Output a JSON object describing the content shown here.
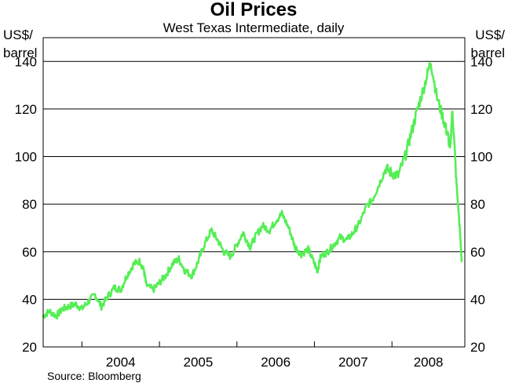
{
  "chart_data": {
    "type": "line",
    "title": "Oil Prices",
    "subtitle": "West Texas Intermediate, daily",
    "ylabel_left": [
      "US$/",
      "barrel"
    ],
    "ylabel_right": [
      "US$/",
      "barrel"
    ],
    "ylim": [
      20,
      150
    ],
    "yticks": [
      20,
      40,
      60,
      80,
      100,
      120,
      140
    ],
    "xlim": [
      2003.5,
      2008.94
    ],
    "year_labels": [
      "2004",
      "2005",
      "2006",
      "2007",
      "2008"
    ],
    "grid": true,
    "line_color": "#55ee55",
    "source": "Source: Bloomberg",
    "series": [
      {
        "x": [
          2003.5,
          2003.58,
          2003.67,
          2003.75,
          2003.83,
          2003.92,
          2004.0,
          2004.08,
          2004.17,
          2004.25,
          2004.33,
          2004.42,
          2004.5,
          2004.58,
          2004.67,
          2004.75,
          2004.8,
          2004.83,
          2004.92,
          2005.0,
          2005.08,
          2005.17,
          2005.25,
          2005.33,
          2005.42,
          2005.5,
          2005.58,
          2005.67,
          2005.75,
          2005.83,
          2005.92,
          2006.0,
          2006.08,
          2006.17,
          2006.25,
          2006.33,
          2006.42,
          2006.5,
          2006.58,
          2006.67,
          2006.75,
          2006.83,
          2006.92,
          2007.0,
          2007.04,
          2007.08,
          2007.17,
          2007.25,
          2007.33,
          2007.42,
          2007.5,
          2007.58,
          2007.67,
          2007.75,
          2007.83,
          2007.92,
          2008.0,
          2008.08,
          2008.17,
          2008.25,
          2008.33,
          2008.42,
          2008.5,
          2008.58,
          2008.67,
          2008.72,
          2008.75,
          2008.78,
          2008.83,
          2008.87,
          2008.9
        ],
        "y": [
          33,
          35,
          33,
          36,
          37,
          38,
          36,
          39,
          42,
          37,
          41,
          45,
          44,
          50,
          55,
          56,
          52,
          46,
          44,
          47,
          50,
          55,
          57,
          52,
          50,
          56,
          63,
          69,
          65,
          60,
          58,
          63,
          68,
          62,
          67,
          71,
          69,
          73,
          76,
          70,
          62,
          59,
          61,
          55,
          52,
          58,
          60,
          63,
          66,
          65,
          68,
          72,
          79,
          82,
          88,
          95,
          93,
          92,
          100,
          110,
          120,
          130,
          140,
          125,
          115,
          109,
          103,
          120,
          90,
          72,
          56
        ]
      }
    ]
  }
}
